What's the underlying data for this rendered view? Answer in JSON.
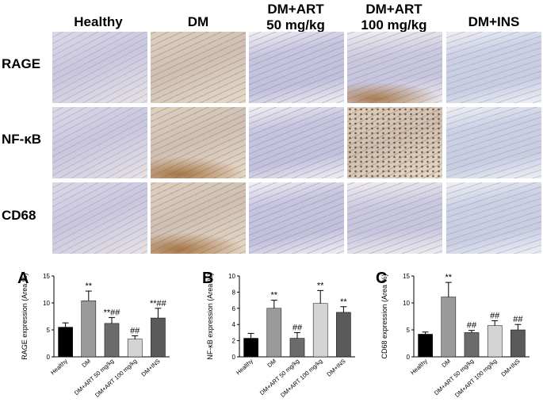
{
  "columns": [
    "Healthy",
    "DM",
    "DM+ART\n50 mg/kg",
    "DM+ART\n100 mg/kg",
    "DM+INS"
  ],
  "rows": [
    "RAGE",
    "NF-κB",
    "CD68"
  ],
  "panel_letters": [
    "A",
    "B",
    "C"
  ],
  "chart_data": [
    {
      "type": "bar",
      "title": "",
      "ylabel": "RAGE expression (Area %)",
      "xlabel": "",
      "ylim": [
        0,
        15
      ],
      "yticks": [
        0,
        5,
        10,
        15
      ],
      "categories": [
        "Healthy",
        "DM",
        "DM+ART 50 mg/kg",
        "DM+ART 100 mg/kg",
        "DM+INS"
      ],
      "values": [
        5.5,
        10.4,
        6.2,
        3.3,
        7.2
      ],
      "errors": [
        0.8,
        1.8,
        1.1,
        0.6,
        1.8
      ],
      "annotations": [
        "",
        "**",
        "**##",
        "##",
        "**##"
      ],
      "colors": [
        "#000000",
        "#9a9a9a",
        "#6b6b6b",
        "#d4d4d4",
        "#5a5a5a"
      ]
    },
    {
      "type": "bar",
      "title": "",
      "ylabel": "NF-κB expression (Area %)",
      "xlabel": "",
      "ylim": [
        0,
        10
      ],
      "yticks": [
        0,
        2,
        4,
        6,
        8,
        10
      ],
      "categories": [
        "Healthy",
        "DM",
        "DM+ART 50 mg/kg",
        "DM+ART 100 mg/kg",
        "DM+INS"
      ],
      "values": [
        2.3,
        6.0,
        2.3,
        6.6,
        5.5
      ],
      "errors": [
        0.6,
        1.0,
        0.7,
        1.6,
        0.7
      ],
      "annotations": [
        "",
        "**",
        "##",
        "**",
        "**"
      ],
      "colors": [
        "#000000",
        "#9a9a9a",
        "#6b6b6b",
        "#d4d4d4",
        "#5a5a5a"
      ]
    },
    {
      "type": "bar",
      "title": "",
      "ylabel": "CD68 expression (Area %)",
      "xlabel": "",
      "ylim": [
        0,
        15
      ],
      "yticks": [
        0,
        5,
        10,
        15
      ],
      "categories": [
        "Healthy",
        "DM",
        "DM+ART 50 mg/kg",
        "DM+ART 100 mg/kg",
        "DM+INS"
      ],
      "values": [
        4.2,
        11.1,
        4.5,
        5.8,
        5.0
      ],
      "errors": [
        0.4,
        2.7,
        0.4,
        0.9,
        1.0
      ],
      "annotations": [
        "",
        "**",
        "##",
        "##",
        "##"
      ],
      "colors": [
        "#000000",
        "#9a9a9a",
        "#6b6b6b",
        "#d4d4d4",
        "#5a5a5a"
      ]
    }
  ]
}
